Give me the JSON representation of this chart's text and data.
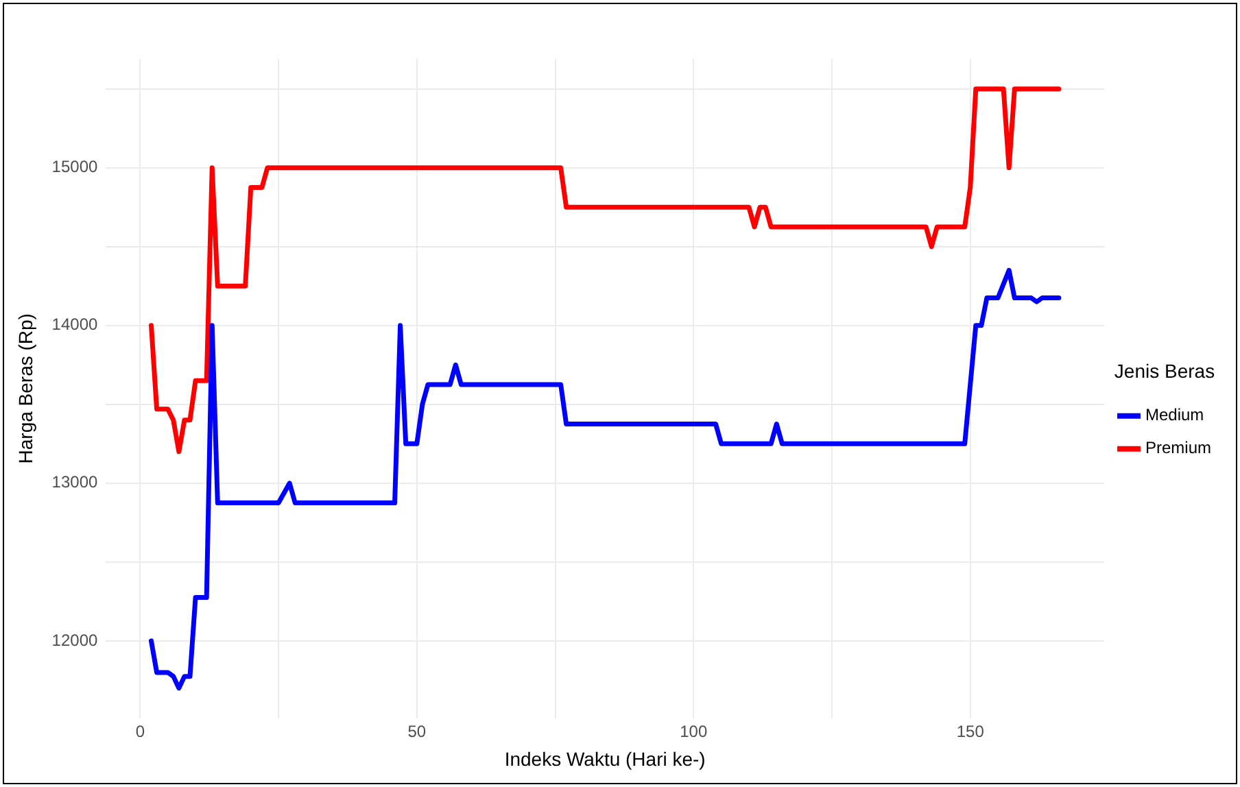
{
  "chart_data": {
    "type": "line",
    "xlabel": "Indeks Waktu (Hari ke-)",
    "ylabel": "Harga Beras (Rp)",
    "legend_title": "Jenis Beras",
    "legend": "right",
    "grid": true,
    "marker": "none",
    "line_style": "solid",
    "xlim": [
      -6.2,
      174.2
    ],
    "xticks": [
      0,
      {
        "value": 25,
        "label": null
      },
      50,
      {
        "value": 75,
        "label": null
      },
      100,
      {
        "value": 125,
        "label": null
      },
      150
    ],
    "ylim": [
      11510,
      15690
    ],
    "yticks": [
      12000,
      {
        "value": 12500,
        "label": null
      },
      13000,
      {
        "value": 13500,
        "label": null
      },
      14000,
      {
        "value": 14500,
        "label": null
      },
      15000,
      {
        "value": 15500,
        "label": null
      }
    ],
    "series": [
      {
        "name": "Medium",
        "color": "#0000ff",
        "x": [
          2,
          3,
          5,
          6,
          7,
          8,
          9,
          10,
          12,
          13,
          14,
          25,
          27,
          28,
          46,
          47,
          48,
          50,
          51,
          52,
          56,
          57,
          58,
          76,
          77,
          104,
          105,
          114,
          115,
          116,
          149,
          151,
          152,
          153,
          155,
          157,
          158,
          161,
          162,
          163,
          166
        ],
        "values": [
          12000,
          11800,
          11800,
          11775,
          11700,
          11775,
          11775,
          12275,
          12275,
          14000,
          12875,
          12875,
          13000,
          12875,
          12875,
          14000,
          13250,
          13250,
          13500,
          13625,
          13625,
          13750,
          13625,
          13625,
          13375,
          13375,
          13250,
          13250,
          13375,
          13250,
          13250,
          14000,
          14000,
          14175,
          14175,
          14350,
          14175,
          14175,
          14150,
          14175,
          14175
        ]
      },
      {
        "name": "Premium",
        "color": "#ff0000",
        "x": [
          2,
          3,
          5,
          6,
          7,
          8,
          9,
          10,
          12,
          13,
          14,
          19,
          20,
          22,
          23,
          76,
          77,
          110,
          111,
          112,
          113,
          114,
          142,
          143,
          144,
          149,
          150,
          151,
          156,
          157,
          158,
          166
        ],
        "values": [
          14000,
          13470,
          13470,
          13400,
          13200,
          13400,
          13400,
          13650,
          13650,
          15000,
          14250,
          14250,
          14875,
          14875,
          15000,
          15000,
          14750,
          14750,
          14625,
          14750,
          14750,
          14625,
          14625,
          14500,
          14625,
          14625,
          14875,
          15500,
          15500,
          15000,
          15500,
          15500
        ]
      }
    ]
  }
}
